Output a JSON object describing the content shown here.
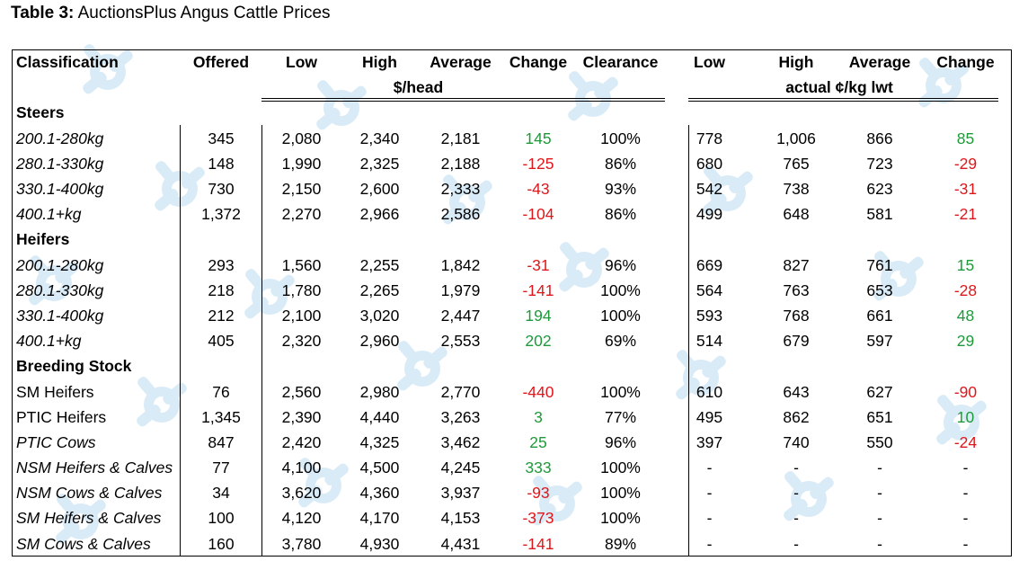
{
  "title": {
    "bold": "Table 3:",
    "text": " AuctionsPlus Angus Cattle Prices"
  },
  "headers": {
    "classification": "Classification",
    "offered": "Offered",
    "low": "Low",
    "high": "High",
    "average": "Average",
    "change": "Change",
    "clearance": "Clearance",
    "low2": "Low",
    "high2": "High",
    "average2": "Average",
    "change2": "Change",
    "unit_head": "$/head",
    "unit_kg": "actual ¢/kg lwt"
  },
  "sections": [
    {
      "name": "Steers",
      "rows": [
        {
          "label": "200.1-280kg",
          "italic": true,
          "offered": "345",
          "low": "2,080",
          "high": "2,340",
          "avg": "2,181",
          "change": "145",
          "change_dir": "pos",
          "clearance": "100%",
          "low_kg": "778",
          "high_kg": "1,006",
          "avg_kg": "866",
          "change_kg": "85",
          "change_kg_dir": "pos"
        },
        {
          "label": "280.1-330kg",
          "italic": true,
          "offered": "148",
          "low": "1,990",
          "high": "2,325",
          "avg": "2,188",
          "change": "-125",
          "change_dir": "neg",
          "clearance": "86%",
          "low_kg": "680",
          "high_kg": "765",
          "avg_kg": "723",
          "change_kg": "-29",
          "change_kg_dir": "neg"
        },
        {
          "label": "330.1-400kg",
          "italic": true,
          "offered": "730",
          "low": "2,150",
          "high": "2,600",
          "avg": "2,333",
          "change": "-43",
          "change_dir": "neg",
          "clearance": "93%",
          "low_kg": "542",
          "high_kg": "738",
          "avg_kg": "623",
          "change_kg": "-31",
          "change_kg_dir": "neg"
        },
        {
          "label": "400.1+kg",
          "italic": true,
          "offered": "1,372",
          "low": "2,270",
          "high": "2,966",
          "avg": "2,586",
          "change": "-104",
          "change_dir": "neg",
          "clearance": "86%",
          "low_kg": "499",
          "high_kg": "648",
          "avg_kg": "581",
          "change_kg": "-21",
          "change_kg_dir": "neg"
        }
      ]
    },
    {
      "name": "Heifers",
      "rows": [
        {
          "label": "200.1-280kg",
          "italic": true,
          "offered": "293",
          "low": "1,560",
          "high": "2,255",
          "avg": "1,842",
          "change": "-31",
          "change_dir": "neg",
          "clearance": "96%",
          "low_kg": "669",
          "high_kg": "827",
          "avg_kg": "761",
          "change_kg": "15",
          "change_kg_dir": "pos"
        },
        {
          "label": "280.1-330kg",
          "italic": true,
          "offered": "218",
          "low": "1,780",
          "high": "2,265",
          "avg": "1,979",
          "change": "-141",
          "change_dir": "neg",
          "clearance": "100%",
          "low_kg": "564",
          "high_kg": "763",
          "avg_kg": "653",
          "change_kg": "-28",
          "change_kg_dir": "neg"
        },
        {
          "label": "330.1-400kg",
          "italic": true,
          "offered": "212",
          "low": "2,100",
          "high": "3,020",
          "avg": "2,447",
          "change": "194",
          "change_dir": "pos",
          "clearance": "100%",
          "low_kg": "593",
          "high_kg": "768",
          "avg_kg": "661",
          "change_kg": "48",
          "change_kg_dir": "pos"
        },
        {
          "label": "400.1+kg",
          "italic": true,
          "offered": "405",
          "low": "2,320",
          "high": "2,960",
          "avg": "2,553",
          "change": "202",
          "change_dir": "pos",
          "clearance": "69%",
          "low_kg": "514",
          "high_kg": "679",
          "avg_kg": "597",
          "change_kg": "29",
          "change_kg_dir": "pos"
        }
      ]
    },
    {
      "name": "Breeding Stock",
      "rows": [
        {
          "label": "SM Heifers",
          "italic": false,
          "offered": "76",
          "low": "2,560",
          "high": "2,980",
          "avg": "2,770",
          "change": "-440",
          "change_dir": "neg",
          "clearance": "100%",
          "low_kg": "610",
          "high_kg": "643",
          "avg_kg": "627",
          "change_kg": "-90",
          "change_kg_dir": "neg"
        },
        {
          "label": "PTIC Heifers",
          "italic": false,
          "offered": "1,345",
          "low": "2,390",
          "high": "4,440",
          "avg": "3,263",
          "change": "3",
          "change_dir": "pos",
          "clearance": "77%",
          "low_kg": "495",
          "high_kg": "862",
          "avg_kg": "651",
          "change_kg": "10",
          "change_kg_dir": "pos"
        },
        {
          "label": "PTIC Cows",
          "italic": true,
          "offered": "847",
          "low": "2,420",
          "high": "4,325",
          "avg": "3,462",
          "change": "25",
          "change_dir": "pos",
          "clearance": "96%",
          "low_kg": "397",
          "high_kg": "740",
          "avg_kg": "550",
          "change_kg": "-24",
          "change_kg_dir": "neg"
        },
        {
          "label": "NSM Heifers & Calves",
          "italic": true,
          "offered": "77",
          "low": "4,100",
          "high": "4,500",
          "avg": "4,245",
          "change": "333",
          "change_dir": "pos",
          "clearance": "100%",
          "low_kg": "-",
          "high_kg": "-",
          "avg_kg": "-",
          "change_kg": "-",
          "change_kg_dir": "none"
        },
        {
          "label": "NSM Cows & Calves",
          "italic": true,
          "offered": "34",
          "low": "3,620",
          "high": "4,360",
          "avg": "3,937",
          "change": "-93",
          "change_dir": "neg",
          "clearance": "100%",
          "low_kg": "-",
          "high_kg": "-",
          "avg_kg": "-",
          "change_kg": "-",
          "change_kg_dir": "none"
        },
        {
          "label": "SM Heifers & Calves",
          "italic": true,
          "offered": "100",
          "low": "4,120",
          "high": "4,170",
          "avg": "4,153",
          "change": "-373",
          "change_dir": "neg",
          "clearance": "100%",
          "low_kg": "-",
          "high_kg": "-",
          "avg_kg": "-",
          "change_kg": "-",
          "change_kg_dir": "none"
        },
        {
          "label": "SM Cows & Calves",
          "italic": true,
          "offered": "160",
          "low": "3,780",
          "high": "4,930",
          "avg": "4,431",
          "change": "-141",
          "change_dir": "neg",
          "clearance": "89%",
          "low_kg": "-",
          "high_kg": "-",
          "avg_kg": "-",
          "change_kg": "-",
          "change_kg_dir": "none"
        }
      ]
    }
  ],
  "colors": {
    "positive": "#1e9a3a",
    "negative": "#e0161a",
    "watermark": "#d9ebf7"
  },
  "watermark_icon": "mla-logo-watermark-icon"
}
